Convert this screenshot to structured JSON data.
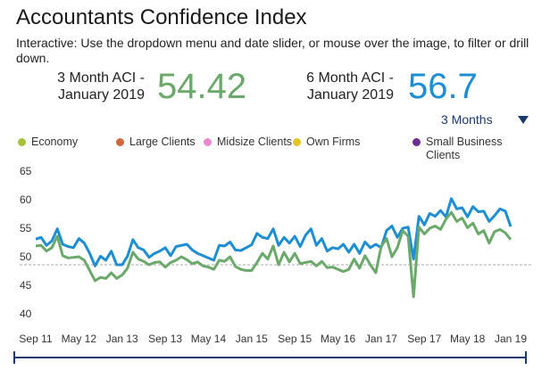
{
  "header": {
    "title": "Accountants Confidence Index",
    "subtitle": "Interactive: Use the dropdown menu and date slider, or mouse over the image, to filter or drill down."
  },
  "kpis": [
    {
      "label": "3 Month ACI - January 2019",
      "value": "54.42",
      "color": "#6aa96a"
    },
    {
      "label": "6 Month ACI - January 2019",
      "value": "56.7",
      "color": "#1e8ed4"
    }
  ],
  "dropdown": {
    "selected": "3 Months"
  },
  "chart_data": {
    "type": "line",
    "legend": [
      {
        "name": "Economy",
        "color": "#a7c13a"
      },
      {
        "name": "Large Clients",
        "color": "#d0663e"
      },
      {
        "name": "Midsize Clients",
        "color": "#e889cf"
      },
      {
        "name": "Own Firms",
        "color": "#e3c51c"
      },
      {
        "name": "Small Business Clients",
        "color": "#6b2d8f"
      }
    ],
    "categories": [
      "Sep 11",
      null,
      null,
      null,
      null,
      null,
      null,
      null,
      "May 12",
      null,
      null,
      null,
      null,
      null,
      null,
      null,
      "Jan 13",
      null,
      null,
      null,
      null,
      null,
      null,
      null,
      "Sep 13",
      null,
      null,
      null,
      null,
      null,
      null,
      null,
      "May 14",
      null,
      null,
      null,
      null,
      null,
      null,
      null,
      "Jan 15",
      null,
      null,
      null,
      null,
      null,
      null,
      null,
      "Sep 15",
      null,
      null,
      null,
      null,
      null,
      null,
      null,
      "May 16",
      null,
      null,
      null,
      null,
      null,
      null,
      null,
      "Jan 17",
      null,
      null,
      null,
      null,
      null,
      null,
      null,
      "Sep 17",
      null,
      null,
      null,
      null,
      null,
      null,
      null,
      "May 18",
      null,
      null,
      null,
      null,
      null,
      null,
      null,
      "Jan 19"
    ],
    "series": [
      {
        "color": "#1e8ed4",
        "values": [
          54.5,
          54.8,
          53.4,
          54.2,
          56.3,
          53.6,
          53.2,
          53.0,
          54.6,
          53.8,
          52.0,
          49.8,
          51.5,
          50.8,
          52.4,
          50.0,
          50.0,
          51.5,
          54.4,
          53.0,
          52.6,
          51.3,
          52.0,
          52.4,
          53.0,
          51.6,
          53.2,
          53.4,
          53.6,
          52.6,
          52.0,
          51.6,
          51.2,
          50.8,
          53.4,
          53.3,
          54.0,
          52.6,
          52.5,
          53.0,
          53.5,
          55.5,
          54.8,
          54.6,
          56.3,
          53.4,
          54.8,
          53.8,
          55.0,
          53.2,
          55.2,
          56.3,
          53.4,
          54.6,
          52.4,
          53.0,
          52.8,
          53.6,
          52.2,
          53.6,
          52.0,
          54.0,
          53.0,
          53.6,
          53.0,
          56.0,
          56.8,
          54.8,
          56.4,
          56.6,
          51.0,
          58.5,
          57.0,
          59.0,
          58.5,
          59.5,
          58.4,
          61.6,
          59.8,
          60.0,
          58.4,
          60.2,
          59.3,
          59.4,
          57.6,
          58.6,
          59.8,
          59.4,
          56.7
        ]
      },
      {
        "color": "#6aa96a",
        "values": [
          53.3,
          53.4,
          52.4,
          53.0,
          55.0,
          51.6,
          51.2,
          51.3,
          51.4,
          50.8,
          49.0,
          47.2,
          47.8,
          47.6,
          48.6,
          47.6,
          48.2,
          49.4,
          52.2,
          51.0,
          50.6,
          50.0,
          50.4,
          50.5,
          49.6,
          50.4,
          50.8,
          51.4,
          50.9,
          50.2,
          50.5,
          49.8,
          49.6,
          49.2,
          50.8,
          50.6,
          51.4,
          49.7,
          49.2,
          49.0,
          49.0,
          50.4,
          52.0,
          51.0,
          53.3,
          50.0,
          52.2,
          50.5,
          52.0,
          50.2,
          50.4,
          50.6,
          49.8,
          50.6,
          49.5,
          49.6,
          49.2,
          48.8,
          49.2,
          51.0,
          49.4,
          51.6,
          50.0,
          48.6,
          53.2,
          54.6,
          51.4,
          53.0,
          56.0,
          55.0,
          44.4,
          56.6,
          55.4,
          56.4,
          56.8,
          56.2,
          58.0,
          59.2,
          57.6,
          58.2,
          56.5,
          57.3,
          55.4,
          56.0,
          53.8,
          55.8,
          56.2,
          55.6,
          54.42
        ]
      }
    ],
    "ylim": [
      40,
      65
    ],
    "yticks": [
      40,
      45,
      50,
      55,
      60,
      65
    ],
    "reference_line": 50,
    "grid": false
  }
}
